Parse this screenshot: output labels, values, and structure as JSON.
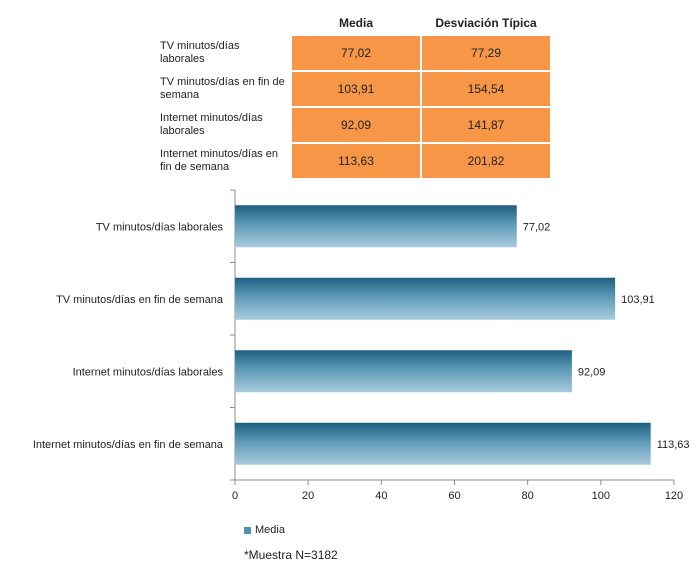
{
  "table": {
    "headers": [
      "",
      "Media",
      "Desviación Típica"
    ],
    "rows": [
      {
        "label": "TV minutos/días laborales",
        "media": "77,02",
        "desviacion": "77,29"
      },
      {
        "label": "TV minutos/días en fin de semana",
        "media": "103,91",
        "desviacion": "154,54"
      },
      {
        "label": "Internet minutos/días laborales",
        "media": "92,09",
        "desviacion": "141,87"
      },
      {
        "label": "Internet minutos/días en fin de semana",
        "media": "113,63",
        "desviacion": "201,82"
      }
    ]
  },
  "chart_data": {
    "type": "bar",
    "orientation": "horizontal",
    "categories": [
      "TV minutos/días laborales",
      "TV minutos/días en fin de semana",
      "Internet minutos/días laborales",
      "Internet minutos/días en fin de semana"
    ],
    "series": [
      {
        "name": "Media",
        "values": [
          77.02,
          103.91,
          92.09,
          113.63
        ]
      }
    ],
    "data_labels": [
      "77,02",
      "103,91",
      "92,09",
      "113,63"
    ],
    "xlim": [
      0,
      120
    ],
    "xticks": [
      0,
      20,
      40,
      60,
      80,
      100,
      120
    ],
    "legend_position": "bottom-left",
    "grid": false,
    "color": "#4f8fb0"
  },
  "legend": {
    "label": "Media"
  },
  "footnote": "*Muestra N=3182"
}
